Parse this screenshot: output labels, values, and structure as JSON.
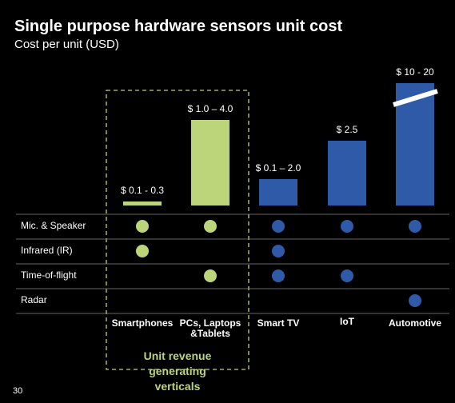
{
  "title": "Single purpose hardware sensors unit cost",
  "subtitle": "Cost per unit (USD)",
  "columns": [
    {
      "label": "Smartphones",
      "price": "$ 0.1 - 0.3",
      "color": "#bcd47a"
    },
    {
      "label": "PCs, Laptops &Tablets",
      "price": "$ 1.0 – 4.0",
      "color": "#bcd47a"
    },
    {
      "label": "Smart TV",
      "price": "$ 0.1 – 2.0",
      "color": "#2e5aa8"
    },
    {
      "label": "IoT",
      "price": "$ 2.5",
      "color": "#2e5aa8"
    },
    {
      "label": "Automotive",
      "price": "$ 10 - 20",
      "color": "#2e5aa8"
    }
  ],
  "rows": [
    {
      "label": "Mic. & Speaker",
      "dots": [
        true,
        true,
        true,
        true,
        true
      ]
    },
    {
      "label": "Infrared (IR)",
      "dots": [
        true,
        false,
        true,
        false,
        false
      ]
    },
    {
      "label": "Time-of-flight",
      "dots": [
        false,
        true,
        true,
        true,
        false
      ]
    },
    {
      "label": "Radar",
      "dots": [
        false,
        false,
        false,
        false,
        true
      ]
    }
  ],
  "highlight": "Unit revenue generating verticals",
  "page_number": "30"
}
